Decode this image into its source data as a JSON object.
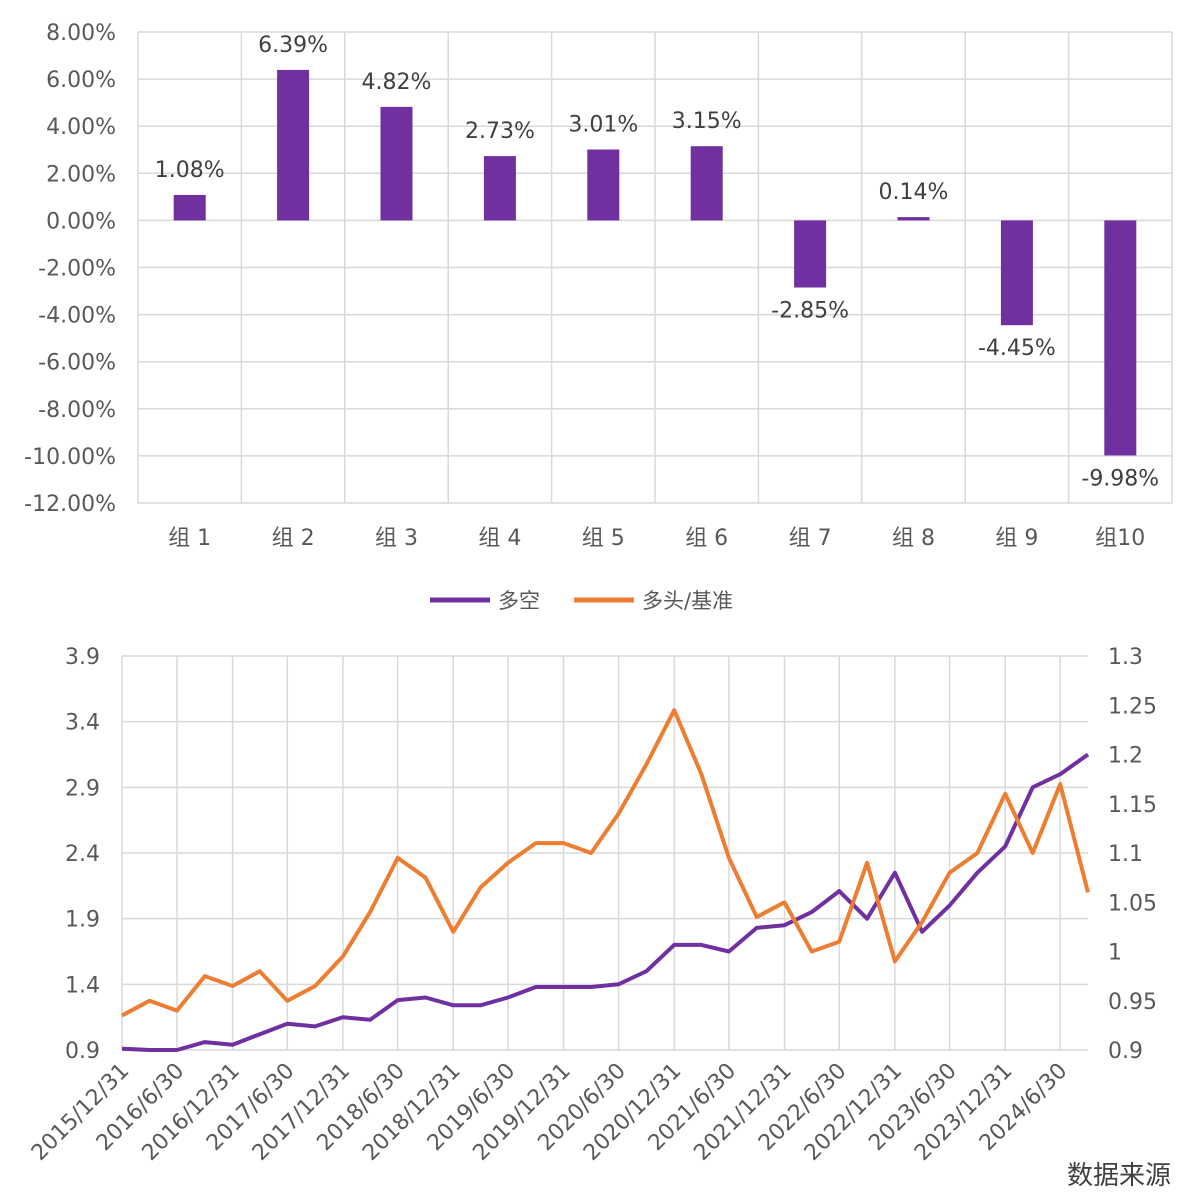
{
  "chart_data": [
    {
      "type": "bar",
      "categories": [
        "组 1",
        "组 2",
        "组 3",
        "组 4",
        "组 5",
        "组 6",
        "组 7",
        "组 8",
        "组 9",
        "组10"
      ],
      "values": [
        1.08,
        6.39,
        4.82,
        2.73,
        3.01,
        3.15,
        -2.85,
        0.14,
        -4.45,
        -9.98
      ],
      "data_labels": [
        "1.08%",
        "6.39%",
        "4.82%",
        "2.73%",
        "3.01%",
        "3.15%",
        "-2.85%",
        "0.14%",
        "-4.45%",
        "-9.98%"
      ],
      "yticks": [
        "8.00%",
        "6.00%",
        "4.00%",
        "2.00%",
        "0.00%",
        "-2.00%",
        "-4.00%",
        "-6.00%",
        "-8.00%",
        "-10.00%",
        "-12.00%"
      ],
      "ylim": [
        -12,
        8
      ],
      "color": "#7030A0",
      "grid": true
    },
    {
      "type": "line",
      "x_range": [
        "2015/12/31",
        "2024/9/30"
      ],
      "xticks": [
        "2015/12/31",
        "2016/6/30",
        "2016/12/31",
        "2017/6/30",
        "2017/12/31",
        "2018/6/30",
        "2018/12/31",
        "2019/6/30",
        "2019/12/31",
        "2020/6/30",
        "2020/12/31",
        "2021/6/30",
        "2021/12/31",
        "2022/6/30",
        "2022/12/31",
        "2023/6/30",
        "2023/12/31",
        "2024/6/30"
      ],
      "y_left_ticks": [
        "3.9",
        "3.4",
        "2.9",
        "2.4",
        "1.9",
        "1.4",
        "0.9"
      ],
      "y_left_range": [
        0.9,
        3.9
      ],
      "y_right_ticks": [
        "1.3",
        "1.25",
        "1.2",
        "1.15",
        "1.1",
        "1.05",
        "1",
        "0.95",
        "0.9"
      ],
      "y_right_range": [
        0.9,
        1.3
      ],
      "legend_position": "top",
      "grid": true,
      "series": [
        {
          "name": "多空",
          "axis": "left",
          "color": "#7030A0",
          "x": [
            "2015/12/31",
            "2016/3/31",
            "2016/6/30",
            "2016/9/30",
            "2016/12/31",
            "2017/3/31",
            "2017/6/30",
            "2017/9/30",
            "2017/12/31",
            "2018/3/31",
            "2018/6/30",
            "2018/9/30",
            "2018/12/31",
            "2019/3/31",
            "2019/6/30",
            "2019/9/30",
            "2019/12/31",
            "2020/3/31",
            "2020/6/30",
            "2020/9/30",
            "2020/12/31",
            "2021/3/31",
            "2021/6/30",
            "2021/9/30",
            "2021/12/31",
            "2022/3/31",
            "2022/6/30",
            "2022/9/30",
            "2022/12/31",
            "2023/3/31",
            "2023/6/30",
            "2023/9/30",
            "2023/12/31",
            "2024/3/31",
            "2024/6/30",
            "2024/9/30"
          ],
          "values": [
            0.91,
            0.9,
            0.9,
            0.96,
            0.94,
            1.02,
            1.1,
            1.08,
            1.15,
            1.13,
            1.28,
            1.3,
            1.24,
            1.24,
            1.3,
            1.38,
            1.38,
            1.38,
            1.4,
            1.5,
            1.7,
            1.7,
            1.65,
            1.83,
            1.85,
            1.95,
            2.11,
            1.9,
            2.25,
            1.8,
            2.0,
            2.25,
            2.45,
            2.9,
            3.0,
            3.15
          ]
        },
        {
          "name": "多头/基准",
          "axis": "right",
          "color": "#ED7D31",
          "x": [
            "2015/12/31",
            "2016/3/31",
            "2016/6/30",
            "2016/9/30",
            "2016/12/31",
            "2017/3/31",
            "2017/6/30",
            "2017/9/30",
            "2017/12/31",
            "2018/3/31",
            "2018/6/30",
            "2018/9/30",
            "2018/12/31",
            "2019/3/31",
            "2019/6/30",
            "2019/9/30",
            "2019/12/31",
            "2020/3/31",
            "2020/6/30",
            "2020/9/30",
            "2020/12/31",
            "2021/3/31",
            "2021/6/30",
            "2021/9/30",
            "2021/12/31",
            "2022/3/31",
            "2022/6/30",
            "2022/9/30",
            "2022/12/31",
            "2023/3/31",
            "2023/6/30",
            "2023/9/30",
            "2023/12/31",
            "2024/3/31",
            "2024/6/30",
            "2024/9/30"
          ],
          "values": [
            0.935,
            0.95,
            0.94,
            0.975,
            0.965,
            0.98,
            0.95,
            0.965,
            0.995,
            1.04,
            1.095,
            1.075,
            1.02,
            1.065,
            1.09,
            1.11,
            1.11,
            1.1,
            1.14,
            1.19,
            1.245,
            1.18,
            1.095,
            1.035,
            1.05,
            1.0,
            1.01,
            1.09,
            0.99,
            1.03,
            1.08,
            1.1,
            1.16,
            1.1,
            1.17,
            1.06
          ]
        }
      ]
    }
  ],
  "footer_text": "数据来源"
}
